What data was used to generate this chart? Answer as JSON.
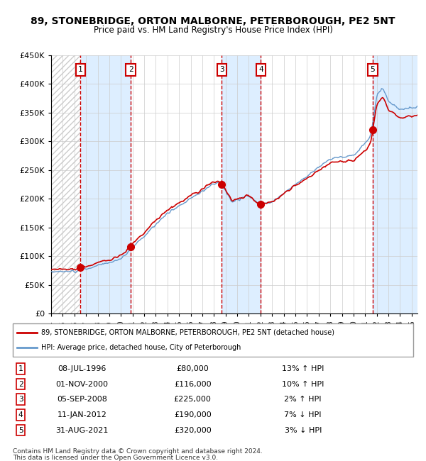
{
  "title": "89, STONEBRIDGE, ORTON MALBORNE, PETERBOROUGH, PE2 5NT",
  "subtitle": "Price paid vs. HM Land Registry's House Price Index (HPI)",
  "ylim": [
    0,
    450000
  ],
  "yticks": [
    0,
    50000,
    100000,
    150000,
    200000,
    250000,
    300000,
    350000,
    400000,
    450000
  ],
  "ytick_labels": [
    "£0",
    "£50K",
    "£100K",
    "£150K",
    "£200K",
    "£250K",
    "£300K",
    "£350K",
    "£400K",
    "£450K"
  ],
  "xlim_start": 1994.0,
  "xlim_end": 2025.5,
  "sale_dates": [
    1996.52,
    2000.84,
    2008.68,
    2012.03,
    2021.66
  ],
  "sale_prices": [
    80000,
    116000,
    225000,
    190000,
    320000
  ],
  "sale_labels": [
    "1",
    "2",
    "3",
    "4",
    "5"
  ],
  "sale_date_strs": [
    "08-JUL-1996",
    "01-NOV-2000",
    "05-SEP-2008",
    "11-JAN-2012",
    "31-AUG-2021"
  ],
  "sale_hpi_pct": [
    "13%↑HPI",
    "10%↑HPI",
    "2%↑HPI",
    "7%↓HPI",
    "3%↓HPI"
  ],
  "sale_hpi_text": [
    "13% ↑ HPI",
    "10% ↑ HPI",
    "2% ↑ HPI",
    "7% ↓ HPI",
    "3% ↓ HPI"
  ],
  "line_color_red": "#cc0000",
  "line_color_blue": "#6699cc",
  "bg_stripe_color": "#ddeeff",
  "hatch_color": "#cccccc",
  "grid_color": "#cccccc",
  "dashed_color": "#cc0000",
  "box_edge_color": "#cc0000",
  "legend_line1": "89, STONEBRIDGE, ORTON MALBORNE, PETERBOROUGH, PE2 5NT (detached house)",
  "legend_line2": "HPI: Average price, detached house, City of Peterborough",
  "footer1": "Contains HM Land Registry data © Crown copyright and database right 2024.",
  "footer2": "This data is licensed under the Open Government Licence v3.0."
}
